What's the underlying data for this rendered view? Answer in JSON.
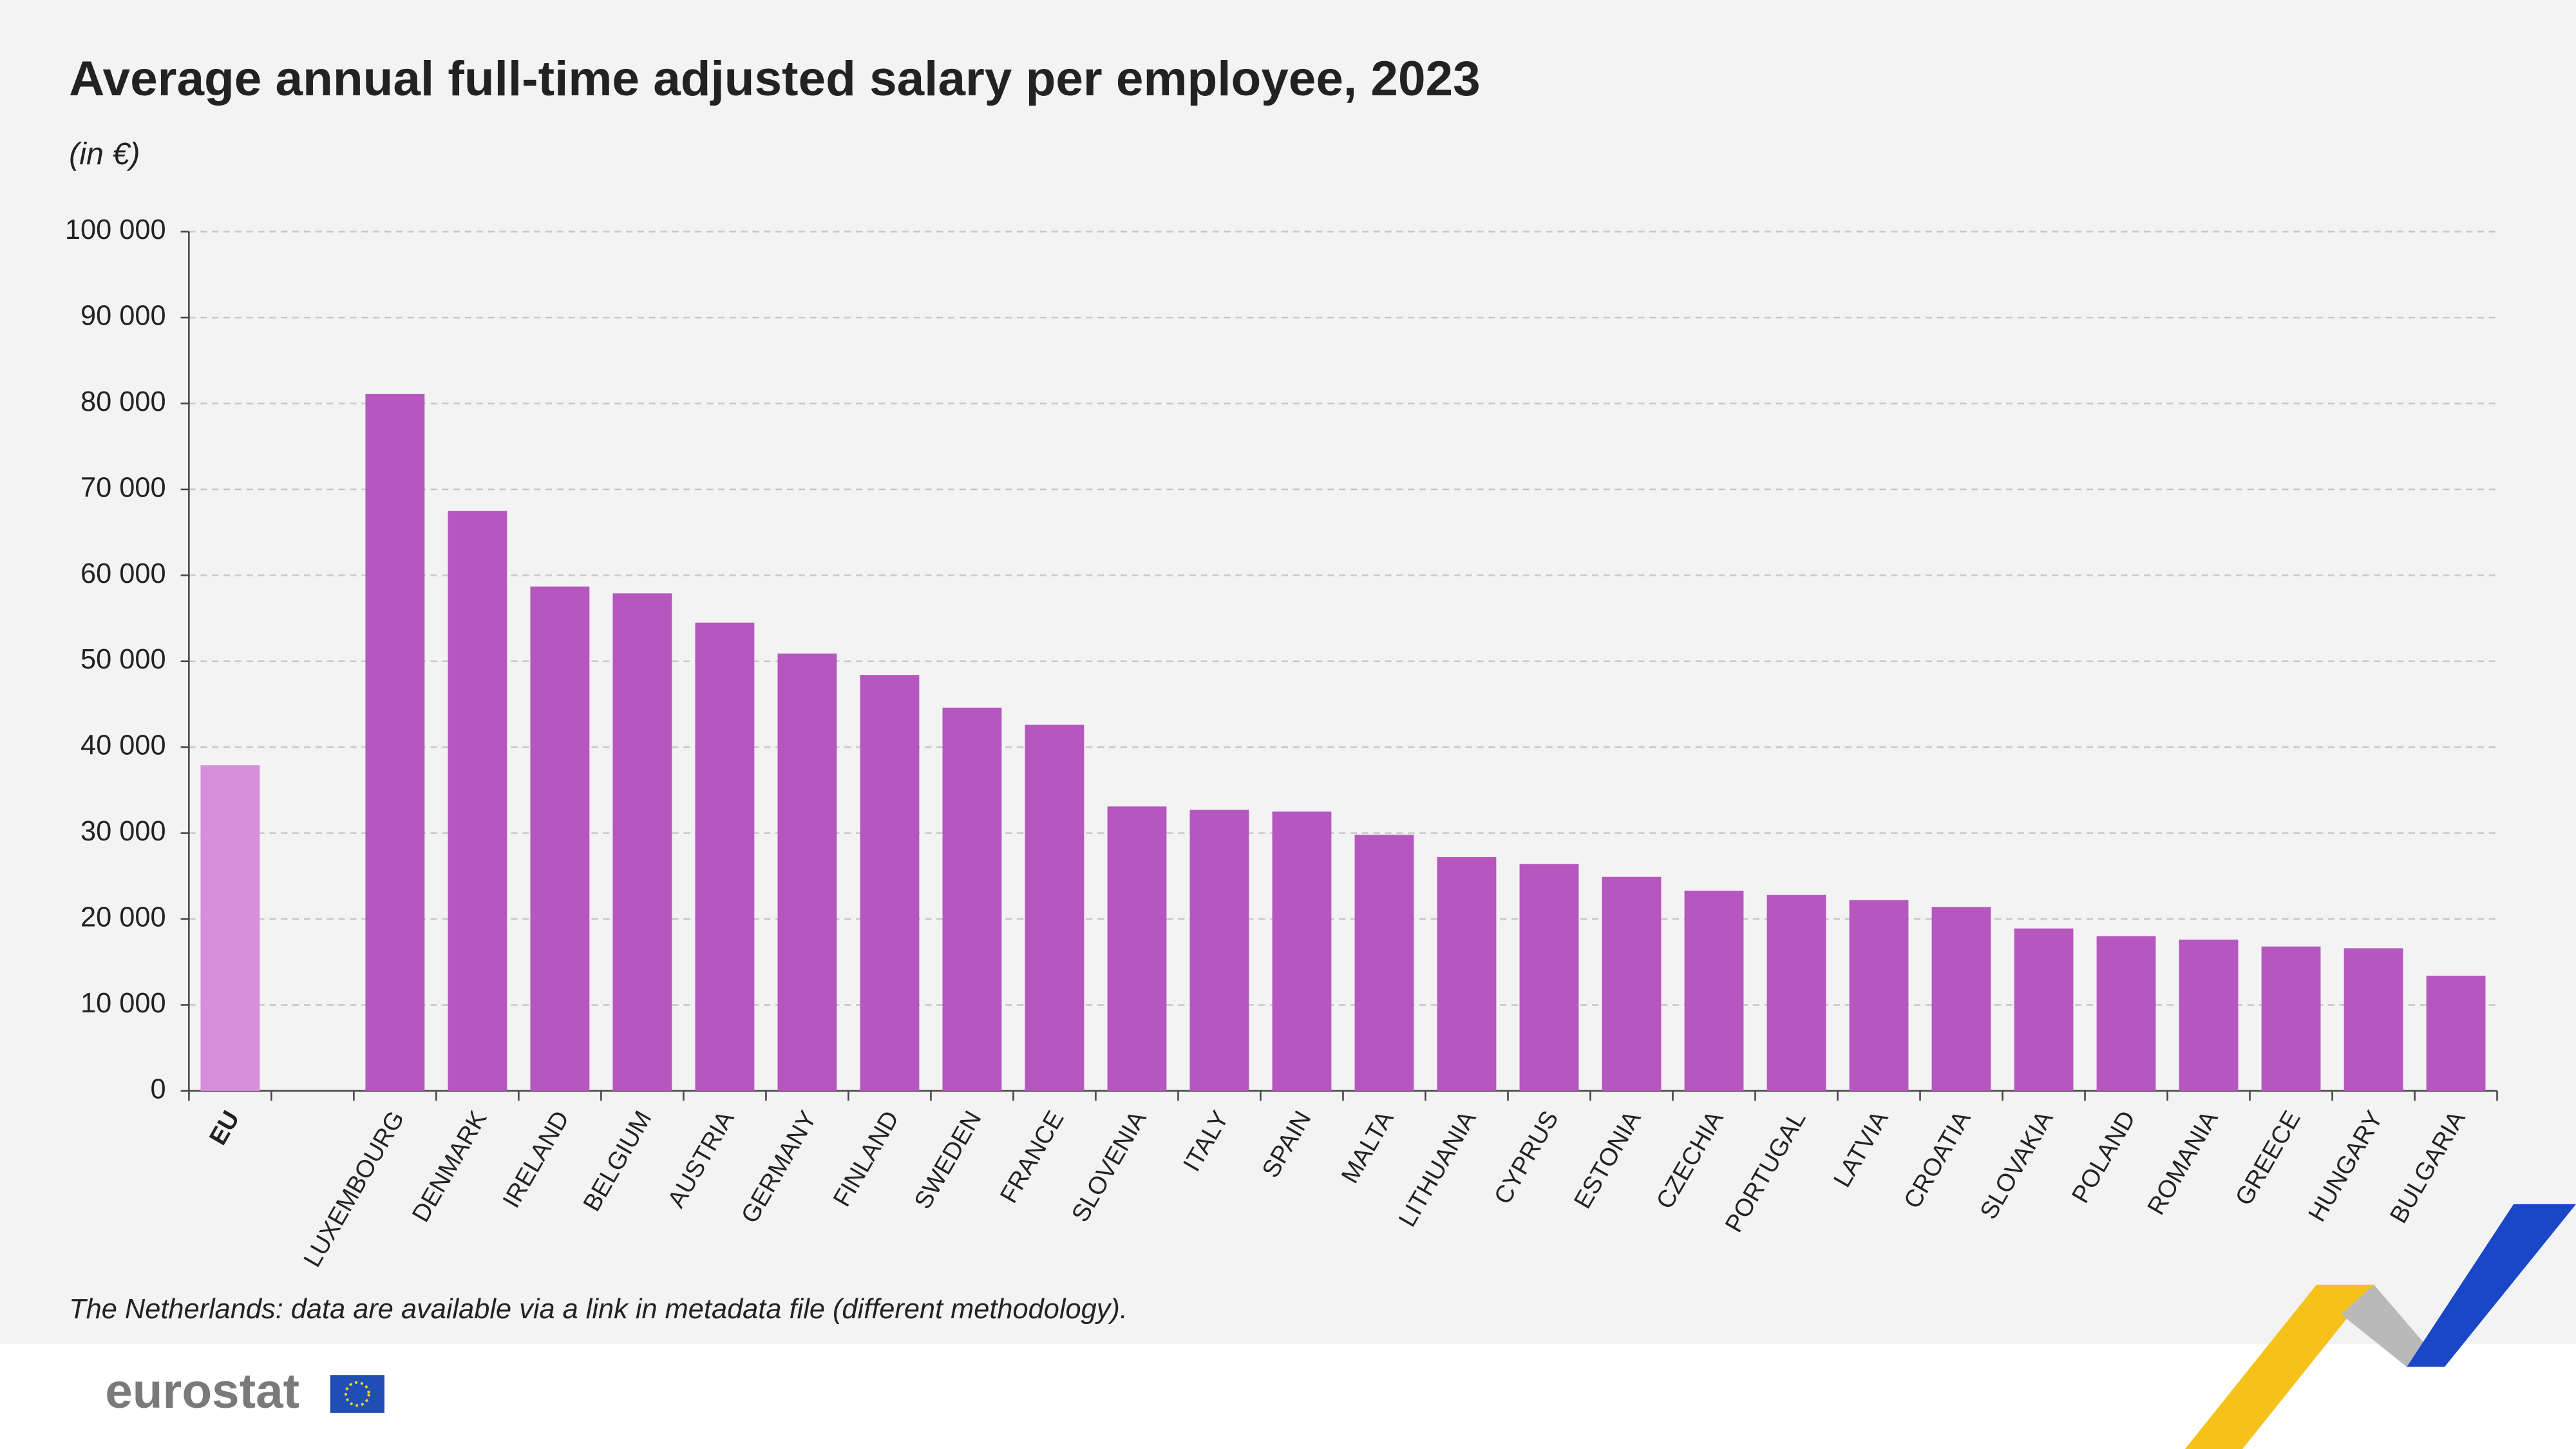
{
  "chart_data": {
    "type": "bar",
    "title": "Average annual full-time adjusted salary per employee, 2023",
    "subtitle": "(in €)",
    "note": "The Netherlands: data are available via a link in metadata file (different methodology).",
    "source": "eurostat",
    "categories": [
      "EU",
      null,
      "LUXEMBOURG",
      "DENMARK",
      "IRELAND",
      "BELGIUM",
      "AUSTRIA",
      "GERMANY",
      "FINLAND",
      "SWEDEN",
      "FRANCE",
      "SLOVENIA",
      "ITALY",
      "SPAIN",
      "MALTA",
      "LITHUANIA",
      "CYPRUS",
      "ESTONIA",
      "CZECHIA",
      "PORTUGAL",
      "LATVIA",
      "CROATIA",
      "SLOVAKIA",
      "POLAND",
      "ROMANIA",
      "GREECE",
      "HUNGARY",
      "BULGARIA"
    ],
    "values": [
      37900,
      null,
      81100,
      67500,
      58700,
      57900,
      54500,
      50900,
      48400,
      44600,
      42600,
      33100,
      32700,
      32500,
      29800,
      27200,
      26400,
      24900,
      23300,
      22800,
      22200,
      21400,
      18900,
      18000,
      17600,
      16800,
      16600,
      13400
    ],
    "colors": [
      "#d68fdb",
      null,
      "#b656bf",
      "#b656bf",
      "#b656bf",
      "#b656bf",
      "#b656bf",
      "#b656bf",
      "#b656bf",
      "#b656bf",
      "#b656bf",
      "#b656bf",
      "#b656bf",
      "#b656bf",
      "#b656bf",
      "#b656bf",
      "#b656bf",
      "#b656bf",
      "#b656bf",
      "#b656bf",
      "#b656bf",
      "#b656bf",
      "#b656bf",
      "#b656bf",
      "#b656bf",
      "#b656bf",
      "#b656bf",
      "#b656bf"
    ],
    "ylim": [
      0,
      100000
    ],
    "yticks": [
      0,
      {
        "value": 10000,
        "label": "10 000"
      },
      {
        "value": 20000,
        "label": "20 000"
      },
      {
        "value": 30000,
        "label": "30 000"
      },
      {
        "value": 40000,
        "label": "40 000"
      },
      {
        "value": 50000,
        "label": "50 000"
      },
      {
        "value": 60000,
        "label": "60 000"
      },
      {
        "value": 70000,
        "label": "70 000"
      },
      {
        "value": 80000,
        "label": "80 000"
      },
      {
        "value": 90000,
        "label": "90 000"
      },
      {
        "value": 100000,
        "label": "100 000"
      }
    ],
    "grid": true
  }
}
